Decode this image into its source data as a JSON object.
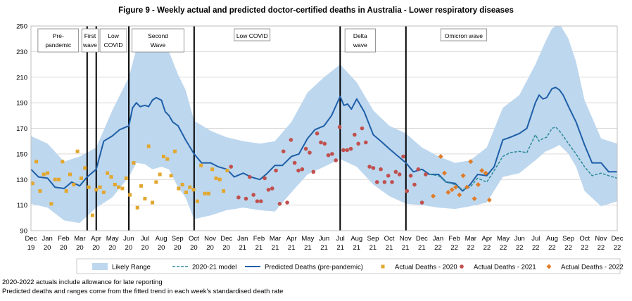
{
  "chart_data": {
    "type": "line",
    "title": "Figure 9 - Weekly actual and predicted doctor-certified deaths in Australia - Lower respiratory diseases",
    "xlabel": "",
    "ylabel": "",
    "ylim": [
      90,
      250
    ],
    "yticks": [
      90,
      110,
      130,
      150,
      170,
      190,
      210,
      230,
      250
    ],
    "xlim": [
      "2019-12-01",
      "2022-12-01"
    ],
    "xtick_labels": [
      [
        "Dec",
        "19"
      ],
      [
        "Jan",
        "20"
      ],
      [
        "Feb",
        "20"
      ],
      [
        "Mar",
        "20"
      ],
      [
        "Apr",
        "20"
      ],
      [
        "May",
        "20"
      ],
      [
        "Jun",
        "20"
      ],
      [
        "Jul",
        "20"
      ],
      [
        "Aug",
        "20"
      ],
      [
        "Sep",
        "20"
      ],
      [
        "Oct",
        "20"
      ],
      [
        "Nov",
        "20"
      ],
      [
        "Dec",
        "20"
      ],
      [
        "Jan",
        "21"
      ],
      [
        "Feb",
        "21"
      ],
      [
        "Mar",
        "21"
      ],
      [
        "Apr",
        "21"
      ],
      [
        "May",
        "21"
      ],
      [
        "Jun",
        "21"
      ],
      [
        "Jul",
        "21"
      ],
      [
        "Aug",
        "21"
      ],
      [
        "Sep",
        "21"
      ],
      [
        "Oct",
        "21"
      ],
      [
        "Nov",
        "21"
      ],
      [
        "Dec",
        "21"
      ],
      [
        "Jan",
        "22"
      ],
      [
        "Feb",
        "22"
      ],
      [
        "Mar",
        "22"
      ],
      [
        "Apr",
        "22"
      ],
      [
        "May",
        "22"
      ],
      [
        "Jun",
        "22"
      ],
      [
        "Jul",
        "22"
      ],
      [
        "Aug",
        "22"
      ],
      [
        "Sep",
        "22"
      ],
      [
        "Oct",
        "22"
      ],
      [
        "Nov",
        "22"
      ],
      [
        "Dec",
        "22"
      ]
    ],
    "grid": "horizontal",
    "legend_position": "bottom",
    "period_dividers": [
      "2020-03-15",
      "2020-04-01",
      "2020-06-01",
      "2020-10-01",
      "2021-07-01",
      "2021-11-01"
    ],
    "period_labels": [
      {
        "text": [
          "Pre-",
          "pandemic"
        ],
        "from": "2019-12-14",
        "to": "2020-02-28"
      },
      {
        "text": [
          "First",
          "wave"
        ],
        "from": "2020-03-05",
        "to": "2020-04-05"
      },
      {
        "text": [
          "Low",
          "COVID"
        ],
        "from": "2020-04-08",
        "to": "2020-05-28"
      },
      {
        "text": [
          "Second",
          "Wave"
        ],
        "from": "2020-06-07",
        "to": "2020-09-12"
      },
      {
        "text": [
          "Low COVID"
        ],
        "from": "2020-12-15",
        "to": "2021-02-20"
      },
      {
        "text": [
          "Delta",
          "wave"
        ],
        "from": "2021-07-10",
        "to": "2021-09-05"
      },
      {
        "text": [
          "Omicron wave"
        ],
        "from": "2022-01-05",
        "to": "2022-04-01"
      }
    ],
    "likely_range": {
      "name": "Likely Range",
      "color": "#bdd7ee",
      "x": [
        "2019-12-01",
        "2020-01-01",
        "2020-02-01",
        "2020-03-01",
        "2020-04-01",
        "2020-05-01",
        "2020-06-01",
        "2020-06-15",
        "2020-07-01",
        "2020-07-15",
        "2020-08-01",
        "2020-08-15",
        "2020-09-01",
        "2020-09-15",
        "2020-10-01",
        "2020-11-01",
        "2020-12-01",
        "2021-01-01",
        "2021-02-01",
        "2021-03-01",
        "2021-04-01",
        "2021-05-01",
        "2021-06-01",
        "2021-07-01",
        "2021-08-01",
        "2021-09-01",
        "2021-10-01",
        "2021-11-01",
        "2021-12-01",
        "2022-01-01",
        "2022-02-01",
        "2022-03-01",
        "2022-04-01",
        "2022-05-01",
        "2022-06-01",
        "2022-07-01",
        "2022-07-20",
        "2022-08-01",
        "2022-08-15",
        "2022-09-01",
        "2022-09-15",
        "2022-10-01",
        "2022-11-01",
        "2022-12-01"
      ],
      "upper": [
        164,
        158,
        144,
        148,
        155,
        184,
        210,
        232,
        237,
        233,
        236,
        230,
        212,
        200,
        176,
        168,
        163,
        160,
        158,
        160,
        175,
        198,
        210,
        220,
        206,
        184,
        172,
        166,
        155,
        148,
        143,
        145,
        155,
        186,
        196,
        220,
        238,
        248,
        252,
        240,
        222,
        192,
        162,
        158
      ],
      "lower": [
        111,
        108,
        98,
        96,
        108,
        116,
        132,
        143,
        142,
        138,
        140,
        138,
        124,
        116,
        99,
        102,
        106,
        108,
        106,
        105,
        120,
        134,
        140,
        146,
        140,
        126,
        117,
        111,
        110,
        108,
        107,
        109,
        112,
        132,
        135,
        145,
        152,
        154,
        157,
        150,
        140,
        121,
        109,
        113
      ]
    },
    "series": [
      {
        "name": "Predicted Deaths (pre-pandemic)",
        "color": "#1f5fa8",
        "style": "solid",
        "x": [
          "2019-12-01",
          "2019-12-15",
          "2020-01-01",
          "2020-01-15",
          "2020-02-01",
          "2020-02-15",
          "2020-03-01",
          "2020-03-15",
          "2020-04-01",
          "2020-04-15",
          "2020-05-01",
          "2020-05-15",
          "2020-06-01",
          "2020-06-08",
          "2020-06-15",
          "2020-06-22",
          "2020-07-01",
          "2020-07-08",
          "2020-07-15",
          "2020-07-22",
          "2020-08-01",
          "2020-08-08",
          "2020-08-15",
          "2020-08-22",
          "2020-09-01",
          "2020-09-15",
          "2020-10-01",
          "2020-10-15",
          "2020-11-01",
          "2020-11-15",
          "2020-12-01",
          "2020-12-15",
          "2021-01-01",
          "2021-01-15",
          "2021-02-01",
          "2021-02-15",
          "2021-03-01",
          "2021-03-15",
          "2021-04-01",
          "2021-04-15",
          "2021-05-01",
          "2021-05-15",
          "2021-06-01",
          "2021-06-15",
          "2021-07-01",
          "2021-07-08",
          "2021-07-15",
          "2021-07-22",
          "2021-08-01",
          "2021-08-15",
          "2021-09-01",
          "2021-09-15",
          "2021-10-01",
          "2021-10-15",
          "2021-11-01",
          "2021-11-15",
          "2021-12-01",
          "2021-12-15",
          "2022-01-01",
          "2022-01-15",
          "2022-02-01",
          "2022-02-15",
          "2022-03-01",
          "2022-03-15",
          "2022-04-01",
          "2022-04-15",
          "2022-05-01",
          "2022-05-15",
          "2022-06-01",
          "2022-06-15",
          "2022-07-01",
          "2022-07-08",
          "2022-07-15",
          "2022-07-22",
          "2022-08-01",
          "2022-08-08",
          "2022-08-15",
          "2022-08-22",
          "2022-09-01",
          "2022-09-15",
          "2022-10-01",
          "2022-10-15",
          "2022-11-01",
          "2022-11-15",
          "2022-12-01"
        ],
        "values": [
          138,
          132,
          131,
          124,
          123,
          128,
          125,
          132,
          138,
          160,
          164,
          169,
          172,
          186,
          190,
          187,
          188,
          187,
          192,
          194,
          192,
          183,
          180,
          175,
          172,
          161,
          150,
          143,
          143,
          140,
          138,
          132,
          135,
          132,
          130,
          135,
          141,
          141,
          148,
          150,
          162,
          169,
          172,
          180,
          195,
          188,
          189,
          185,
          193,
          183,
          165,
          160,
          154,
          149,
          143,
          136,
          138,
          134,
          134,
          128,
          127,
          121,
          126,
          134,
          133,
          140,
          161,
          163,
          166,
          170,
          190,
          196,
          193,
          194,
          201,
          202,
          200,
          196,
          187,
          175,
          157,
          143,
          143,
          136,
          136
        ]
      },
      {
        "name": "2020-21 model",
        "color": "#2e8b9a",
        "style": "dashed",
        "x": [
          "2021-12-15",
          "2022-01-01",
          "2022-01-15",
          "2022-02-01",
          "2022-02-15",
          "2022-03-01",
          "2022-03-15",
          "2022-04-01",
          "2022-04-15",
          "2022-05-01",
          "2022-05-15",
          "2022-06-01",
          "2022-06-15",
          "2022-07-01",
          "2022-07-08",
          "2022-07-15",
          "2022-07-22",
          "2022-08-01",
          "2022-08-08",
          "2022-08-15",
          "2022-08-22",
          "2022-09-01",
          "2022-09-15",
          "2022-10-01",
          "2022-10-15",
          "2022-11-01",
          "2022-11-15",
          "2022-12-01"
        ],
        "values": [
          134,
          133,
          128,
          126,
          122,
          124,
          131,
          128,
          137,
          148,
          151,
          152,
          151,
          165,
          160,
          162,
          163,
          170,
          171,
          168,
          164,
          158,
          150,
          140,
          133,
          135,
          133,
          131
        ]
      }
    ],
    "points": [
      {
        "name": "Actual Deaths - 2020",
        "color": "#e3a72f",
        "marker": "square",
        "x": [
          "2019-12-04",
          "2019-12-11",
          "2019-12-18",
          "2019-12-25",
          "2020-01-01",
          "2020-01-08",
          "2020-01-15",
          "2020-01-22",
          "2020-01-29",
          "2020-02-05",
          "2020-02-12",
          "2020-02-19",
          "2020-02-26",
          "2020-03-04",
          "2020-03-11",
          "2020-03-18",
          "2020-03-25",
          "2020-04-01",
          "2020-04-08",
          "2020-04-15",
          "2020-04-22",
          "2020-04-29",
          "2020-05-06",
          "2020-05-13",
          "2020-05-20",
          "2020-05-27",
          "2020-06-03",
          "2020-06-10",
          "2020-06-17",
          "2020-06-24",
          "2020-07-01",
          "2020-07-08",
          "2020-07-15",
          "2020-07-22",
          "2020-07-29",
          "2020-08-05",
          "2020-08-12",
          "2020-08-19",
          "2020-08-26",
          "2020-09-02",
          "2020-09-09",
          "2020-09-16",
          "2020-09-23",
          "2020-09-30",
          "2020-10-07",
          "2020-10-14",
          "2020-10-21",
          "2020-10-28",
          "2020-11-04",
          "2020-11-11",
          "2020-11-18",
          "2020-11-25",
          "2020-12-02"
        ],
        "values": [
          127,
          144,
          121,
          134,
          135,
          111,
          130,
          130,
          144,
          121,
          134,
          126,
          152,
          131,
          139,
          124,
          102,
          122,
          124,
          120,
          135,
          132,
          126,
          124,
          123,
          131,
          118,
          143,
          108,
          125,
          115,
          156,
          112,
          128,
          134,
          148,
          146,
          133,
          152,
          123,
          126,
          120,
          124,
          122,
          113,
          141,
          119,
          119,
          138,
          131,
          130,
          121,
          137
        ]
      },
      {
        "name": "Actual Deaths - 2021",
        "color": "#c0504d",
        "marker": "circle",
        "x": [
          "2020-12-09",
          "2020-12-23",
          "2021-01-06",
          "2021-01-13",
          "2021-01-20",
          "2021-01-27",
          "2021-02-03",
          "2021-02-10",
          "2021-02-17",
          "2021-02-24",
          "2021-03-03",
          "2021-03-10",
          "2021-03-17",
          "2021-03-24",
          "2021-03-31",
          "2021-04-07",
          "2021-04-14",
          "2021-04-21",
          "2021-04-28",
          "2021-05-05",
          "2021-05-12",
          "2021-05-19",
          "2021-05-26",
          "2021-06-02",
          "2021-06-09",
          "2021-06-16",
          "2021-06-23",
          "2021-06-30",
          "2021-07-07",
          "2021-07-14",
          "2021-07-21",
          "2021-07-28",
          "2021-08-04",
          "2021-08-11",
          "2021-08-18",
          "2021-08-25",
          "2021-09-01",
          "2021-09-08",
          "2021-09-15",
          "2021-09-22",
          "2021-09-29",
          "2021-10-06",
          "2021-10-13",
          "2021-10-20",
          "2021-10-27",
          "2021-11-03",
          "2021-11-10",
          "2021-11-17",
          "2021-11-24",
          "2021-12-01",
          "2021-12-08"
        ],
        "values": [
          140,
          116,
          115,
          132,
          118,
          113,
          113,
          131,
          122,
          123,
          137,
          111,
          152,
          112,
          161,
          143,
          137,
          138,
          154,
          151,
          136,
          166,
          159,
          158,
          149,
          150,
          145,
          171,
          153,
          153,
          154,
          165,
          158,
          170,
          159,
          140,
          139,
          128,
          138,
          128,
          133,
          128,
          136,
          134,
          148,
          121,
          133,
          126,
          138,
          112,
          134
        ]
      },
      {
        "name": "Actual Deaths - 2022",
        "color": "#e07b28",
        "marker": "diamond",
        "x": [
          "2021-12-22",
          "2022-01-05",
          "2022-01-12",
          "2022-01-19",
          "2022-01-26",
          "2022-02-02",
          "2022-02-09",
          "2022-02-16",
          "2022-02-23",
          "2022-03-02",
          "2022-03-09",
          "2022-03-16",
          "2022-03-23",
          "2022-03-30",
          "2022-04-06"
        ],
        "values": [
          117,
          148,
          135,
          120,
          122,
          124,
          118,
          133,
          124,
          144,
          115,
          126,
          137,
          135,
          114
        ]
      }
    ],
    "legend": {
      "items": [
        {
          "label": "Likely Range",
          "key": "range"
        },
        {
          "label": "2020-21 model",
          "key": "dashed"
        },
        {
          "label": "Predicted Deaths (pre-pandemic)",
          "key": "solid"
        },
        {
          "label": "Actual Deaths - 2020",
          "key": "square"
        },
        {
          "label": "Actual Deaths - 2021",
          "key": "circle"
        },
        {
          "label": "Actual Deaths - 2022",
          "key": "diamond"
        }
      ]
    }
  },
  "footnotes": {
    "line1": "2020-2022  actuals include allowance for late reporting",
    "line2": "Predicted deaths and ranges come from the fitted trend in each week's standardised death rate"
  }
}
